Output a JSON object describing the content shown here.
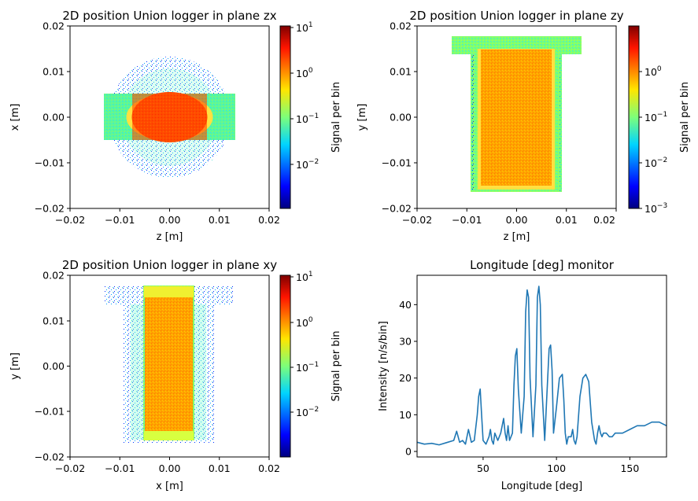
{
  "colors": {
    "line": "#1f77b4",
    "axis": "#000000",
    "background": "#ffffff",
    "colormap": "jet"
  },
  "chart_data": [
    {
      "type": "heatmap",
      "title": "2D position Union logger in plane zx",
      "xlabel": "z [m]",
      "ylabel": "x [m]",
      "xlim": [
        -0.02,
        0.02
      ],
      "ylim": [
        -0.02,
        0.02
      ],
      "x_ticks": [
        "−0.02",
        "−0.01",
        "0.00",
        "0.01",
        "0.02"
      ],
      "y_ticks": [
        "−0.02",
        "−0.01",
        "0.00",
        "0.01",
        "0.02"
      ],
      "colorbar": {
        "label": "Signal per bin",
        "scale": "log",
        "range": [
          0.0015,
          10
        ],
        "tick_labels": [
          "10",
          "10",
          "10",
          "10"
        ],
        "tick_exponents": [
          "1",
          "0",
          "−1",
          "−2"
        ]
      }
    },
    {
      "type": "heatmap",
      "title": "2D position Union logger in plane zy",
      "xlabel": "z [m]",
      "ylabel": "y [m]",
      "xlim": [
        -0.02,
        0.02
      ],
      "ylim": [
        -0.02,
        0.02
      ],
      "x_ticks": [
        "−0.02",
        "−0.01",
        "0.00",
        "0.01",
        "0.02"
      ],
      "y_ticks": [
        "−0.02",
        "−0.01",
        "0.00",
        "0.01",
        "0.02"
      ],
      "colorbar": {
        "label": "Signal per bin",
        "scale": "log",
        "range": [
          0.001,
          8
        ],
        "tick_labels": [
          "10",
          "10",
          "10",
          "10"
        ],
        "tick_exponents": [
          "0",
          "−1",
          "−2",
          "−3"
        ]
      }
    },
    {
      "type": "heatmap",
      "title": "2D position Union logger in plane xy",
      "xlabel": "x [m]",
      "ylabel": "y [m]",
      "xlim": [
        -0.02,
        0.02
      ],
      "ylim": [
        -0.02,
        0.02
      ],
      "x_ticks": [
        "−0.02",
        "−0.01",
        "0.00",
        "0.01",
        "0.02"
      ],
      "y_ticks": [
        "−0.02",
        "−0.01",
        "0.00",
        "0.01",
        "0.02"
      ],
      "colorbar": {
        "label": "Signal per bin",
        "scale": "log",
        "range": [
          0.0015,
          10
        ],
        "tick_labels": [
          "10",
          "10",
          "10",
          "10"
        ],
        "tick_exponents": [
          "1",
          "0",
          "−1",
          "−2"
        ]
      }
    },
    {
      "type": "line",
      "title": "Longitude [deg] monitor",
      "xlabel": "Longitude [deg]",
      "ylabel": "Intensity [n/s/bin]",
      "xlim": [
        5,
        175
      ],
      "ylim": [
        -1.5,
        48
      ],
      "x_ticks": [
        "50",
        "100",
        "150"
      ],
      "y_ticks": [
        "0",
        "10",
        "20",
        "30",
        "40"
      ],
      "series": [
        {
          "x": [
            5,
            10,
            15,
            20,
            25,
            30,
            32,
            34,
            36,
            38,
            40,
            42,
            44,
            46,
            47,
            48,
            49,
            50,
            52,
            54,
            55,
            56,
            57,
            58,
            60,
            62,
            64,
            65,
            66,
            67,
            68,
            70,
            71,
            72,
            73,
            74,
            76,
            78,
            79,
            80,
            81,
            82,
            84,
            86,
            87,
            88,
            89,
            90,
            92,
            94,
            95,
            96,
            97,
            98,
            100,
            102,
            104,
            105,
            106,
            107,
            108,
            110,
            111,
            112,
            113,
            114,
            116,
            118,
            120,
            122,
            124,
            126,
            127,
            128,
            129,
            130,
            131,
            132,
            134,
            136,
            138,
            140,
            145,
            150,
            155,
            160,
            165,
            170,
            175
          ],
          "y": [
            2.5,
            2,
            2.2,
            1.8,
            2.4,
            3,
            5.5,
            2.5,
            3,
            2,
            6,
            2.5,
            3,
            10,
            15,
            17,
            10,
            3,
            2,
            4,
            6,
            3,
            2,
            5,
            3,
            5,
            9,
            5,
            3,
            7,
            3,
            5,
            18,
            26,
            28,
            17,
            5,
            15,
            38,
            44,
            42,
            20,
            4,
            18,
            42,
            45,
            40,
            18,
            3,
            20,
            28,
            29,
            22,
            5,
            12,
            20,
            21,
            14,
            5,
            2,
            4,
            4,
            6,
            3,
            2,
            4,
            15,
            20,
            21,
            19,
            8,
            3,
            2,
            5,
            7,
            5,
            4,
            5,
            5,
            4,
            4,
            5,
            5,
            6,
            7,
            7,
            8,
            8,
            7
          ]
        }
      ]
    }
  ]
}
